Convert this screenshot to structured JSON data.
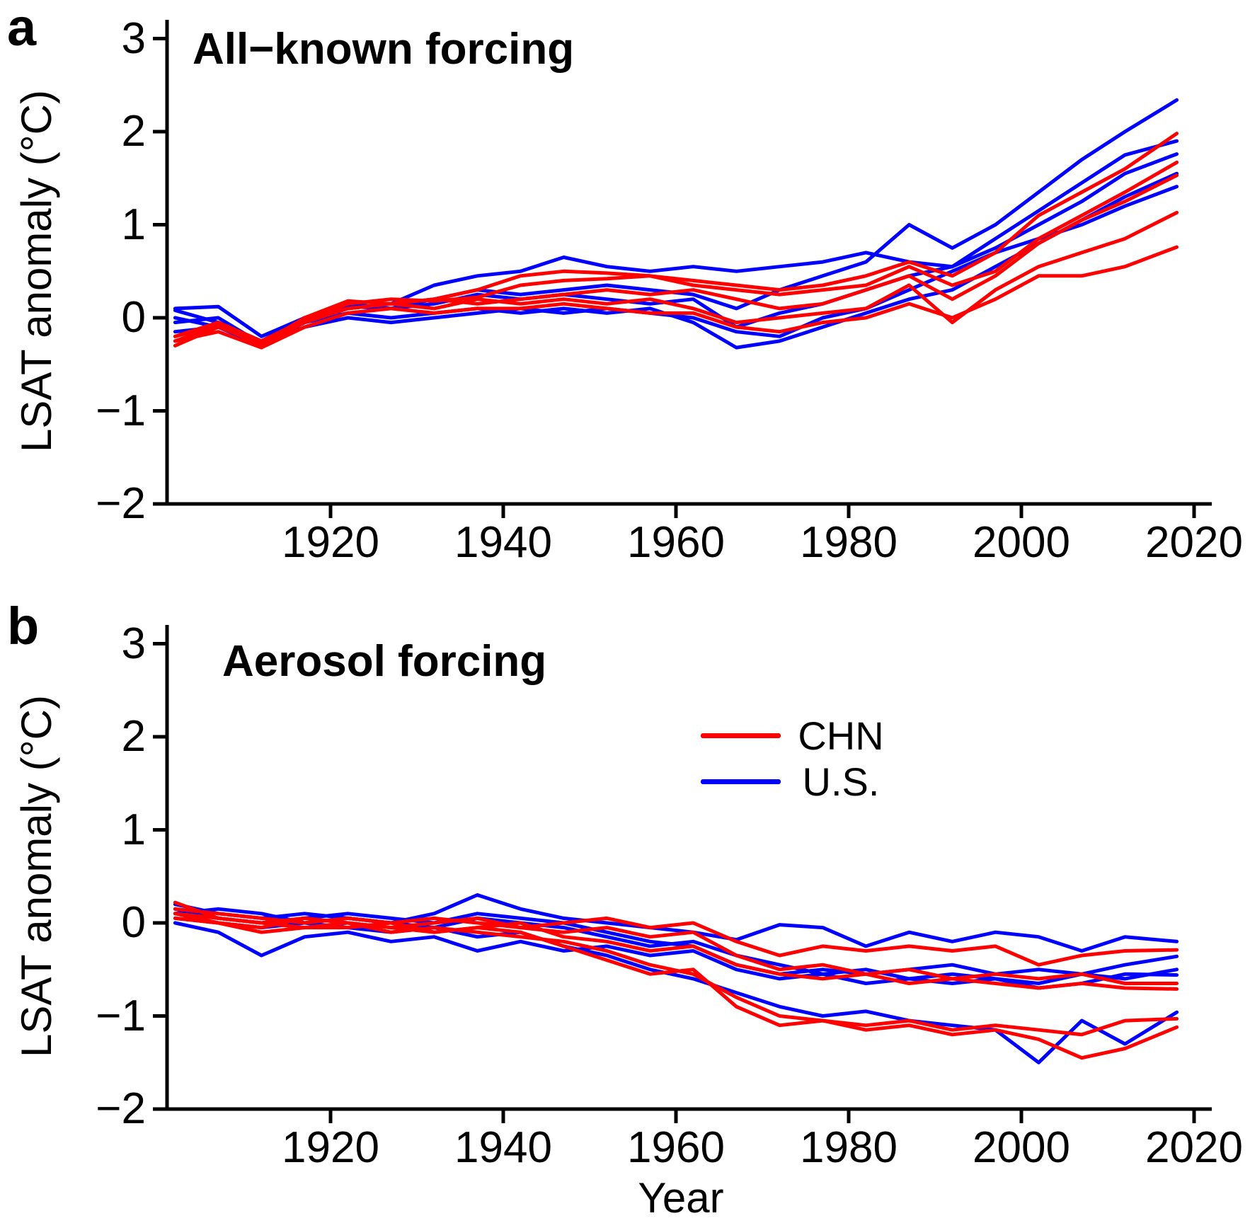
{
  "figure": {
    "panel_a_letter": "a",
    "panel_b_letter": "b"
  },
  "legend": {
    "items": [
      {
        "label": "CHN",
        "color": "#ff0000"
      },
      {
        "label": "U.S.",
        "color": "#0000ff"
      }
    ]
  },
  "chart_data": [
    {
      "type": "line",
      "panel": "a",
      "title": "All−known forcing",
      "ylabel": "LSAT anomaly (°C)",
      "xlabel": "",
      "xlim": [
        1901,
        2022
      ],
      "ylim": [
        -2,
        3
      ],
      "grid": false,
      "x_ticks": [
        1920,
        1940,
        1960,
        1980,
        2000,
        2020
      ],
      "x_tick_labels": [
        "1920",
        "1940",
        "1960",
        "1980",
        "2000",
        "2020"
      ],
      "y_ticks": [
        3,
        2,
        1,
        0,
        -1,
        -2
      ],
      "y_tick_labels": [
        "3",
        "2",
        "1",
        "0",
        "−1",
        "−2"
      ],
      "years": [
        1902,
        1907,
        1912,
        1917,
        1922,
        1927,
        1932,
        1937,
        1942,
        1947,
        1952,
        1957,
        1962,
        1967,
        1972,
        1977,
        1982,
        1987,
        1992,
        1997,
        2002,
        2007,
        2012,
        2018
      ],
      "series": [
        {
          "name": "U.S. member 1",
          "group": "U.S.",
          "color": "#0000ff",
          "values": [
            0.08,
            -0.05,
            -0.25,
            0.0,
            0.15,
            0.1,
            0.2,
            0.3,
            0.25,
            0.3,
            0.35,
            0.3,
            0.25,
            0.1,
            0.3,
            0.45,
            0.6,
            1.0,
            0.75,
            1.0,
            1.35,
            1.7,
            2.0,
            2.34
          ]
        },
        {
          "name": "U.S. member 2",
          "group": "U.S.",
          "color": "#0000ff",
          "values": [
            0.0,
            -0.1,
            -0.3,
            -0.05,
            0.1,
            0.15,
            0.35,
            0.45,
            0.5,
            0.65,
            0.55,
            0.5,
            0.55,
            0.5,
            0.55,
            0.6,
            0.7,
            0.6,
            0.55,
            0.85,
            1.15,
            1.45,
            1.75,
            1.9
          ]
        },
        {
          "name": "U.S. member 3",
          "group": "U.S.",
          "color": "#0000ff",
          "values": [
            0.1,
            0.12,
            -0.2,
            0.0,
            0.12,
            0.1,
            0.15,
            0.25,
            0.2,
            0.25,
            0.2,
            0.15,
            0.2,
            -0.1,
            0.05,
            0.15,
            0.3,
            0.45,
            0.55,
            0.75,
            1.0,
            1.25,
            1.55,
            1.76
          ]
        },
        {
          "name": "U.S. member 4",
          "group": "U.S.",
          "color": "#0000ff",
          "values": [
            -0.05,
            0.0,
            -0.28,
            -0.05,
            0.05,
            0.0,
            0.05,
            0.1,
            0.05,
            0.1,
            0.05,
            0.1,
            -0.05,
            -0.32,
            -0.25,
            -0.1,
            0.05,
            0.2,
            0.3,
            0.55,
            0.8,
            1.05,
            1.3,
            1.55
          ]
        },
        {
          "name": "U.S. member 5",
          "group": "U.S.",
          "color": "#0000ff",
          "values": [
            -0.15,
            -0.1,
            -0.3,
            -0.1,
            0.0,
            -0.05,
            0.0,
            0.05,
            0.1,
            0.05,
            0.1,
            0.05,
            0.0,
            -0.15,
            -0.2,
            0.0,
            0.1,
            0.3,
            0.5,
            0.7,
            0.85,
            1.0,
            1.2,
            1.41
          ]
        },
        {
          "name": "CHN member 1",
          "group": "CHN",
          "color": "#ff0000",
          "values": [
            -0.2,
            -0.05,
            -0.25,
            -0.02,
            0.15,
            0.2,
            0.18,
            0.22,
            0.35,
            0.4,
            0.42,
            0.45,
            0.4,
            0.35,
            0.3,
            0.35,
            0.45,
            0.6,
            0.45,
            0.7,
            1.1,
            1.35,
            1.6,
            1.98
          ]
        },
        {
          "name": "CHN member 2",
          "group": "CHN",
          "color": "#ff0000",
          "values": [
            -0.25,
            -0.08,
            -0.3,
            0.0,
            0.1,
            0.15,
            0.2,
            0.3,
            0.45,
            0.5,
            0.48,
            0.45,
            0.35,
            0.3,
            0.25,
            0.3,
            0.35,
            0.55,
            0.35,
            0.5,
            0.85,
            1.1,
            1.35,
            1.67
          ]
        },
        {
          "name": "CHN member 3",
          "group": "CHN",
          "color": "#ff0000",
          "values": [
            -0.3,
            -0.1,
            -0.28,
            0.0,
            0.18,
            0.15,
            0.2,
            0.15,
            0.2,
            0.25,
            0.3,
            0.25,
            0.3,
            0.2,
            0.1,
            0.15,
            0.3,
            0.45,
            0.2,
            0.45,
            0.8,
            1.05,
            1.25,
            1.53
          ]
        },
        {
          "name": "CHN member 4",
          "group": "CHN",
          "color": "#ff0000",
          "values": [
            -0.2,
            -0.08,
            -0.3,
            -0.05,
            0.1,
            0.15,
            0.1,
            0.2,
            0.15,
            0.2,
            0.15,
            0.2,
            0.1,
            -0.05,
            0.0,
            0.05,
            0.1,
            0.35,
            -0.05,
            0.3,
            0.55,
            0.7,
            0.85,
            1.13
          ]
        },
        {
          "name": "CHN member 5",
          "group": "CHN",
          "color": "#ff0000",
          "values": [
            -0.25,
            -0.15,
            -0.32,
            -0.1,
            0.05,
            0.1,
            0.05,
            0.1,
            0.1,
            0.15,
            0.1,
            0.05,
            0.05,
            -0.1,
            -0.15,
            -0.05,
            0.0,
            0.15,
            0.0,
            0.2,
            0.45,
            0.45,
            0.55,
            0.76
          ]
        }
      ]
    },
    {
      "type": "line",
      "panel": "b",
      "title": "Aerosol forcing",
      "ylabel": "LSAT anomaly (°C)",
      "xlabel": "Year",
      "xlim": [
        1901,
        2022
      ],
      "ylim": [
        -2,
        3
      ],
      "grid": false,
      "legend_position": "upper-right-inside",
      "x_ticks": [
        1920,
        1940,
        1960,
        1980,
        2000,
        2020
      ],
      "x_tick_labels": [
        "1920",
        "1940",
        "1960",
        "1980",
        "2000",
        "2020"
      ],
      "y_ticks": [
        3,
        2,
        1,
        0,
        -1,
        -2
      ],
      "y_tick_labels": [
        "3",
        "2",
        "1",
        "0",
        "−1",
        "−2"
      ],
      "years": [
        1902,
        1907,
        1912,
        1917,
        1922,
        1927,
        1932,
        1937,
        1942,
        1947,
        1952,
        1957,
        1962,
        1967,
        1972,
        1977,
        1982,
        1987,
        1992,
        1997,
        2002,
        2007,
        2012,
        2018
      ],
      "series": [
        {
          "name": "U.S. member 1",
          "group": "U.S.",
          "color": "#0000ff",
          "values": [
            0.2,
            0.1,
            0.05,
            0.1,
            0.05,
            0.0,
            0.1,
            0.3,
            0.15,
            0.05,
            0.0,
            -0.05,
            -0.1,
            -0.18,
            -0.02,
            -0.05,
            -0.25,
            -0.1,
            -0.2,
            -0.1,
            -0.15,
            -0.3,
            -0.15,
            -0.2
          ]
        },
        {
          "name": "U.S. member 2",
          "group": "U.S.",
          "color": "#0000ff",
          "values": [
            0.15,
            0.05,
            0.0,
            0.05,
            0.1,
            0.05,
            0.0,
            0.1,
            0.05,
            0.0,
            -0.1,
            -0.2,
            -0.25,
            -0.45,
            -0.55,
            -0.5,
            -0.55,
            -0.5,
            -0.45,
            -0.55,
            -0.5,
            -0.55,
            -0.45,
            -0.36
          ]
        },
        {
          "name": "U.S. member 3",
          "group": "U.S.",
          "color": "#0000ff",
          "values": [
            0.1,
            0.15,
            0.1,
            0.0,
            0.05,
            0.0,
            -0.05,
            0.05,
            0.0,
            -0.05,
            -0.15,
            -0.25,
            -0.2,
            -0.35,
            -0.45,
            -0.55,
            -0.5,
            -0.6,
            -0.55,
            -0.6,
            -0.65,
            -0.55,
            -0.6,
            -0.5
          ]
        },
        {
          "name": "U.S. member 4",
          "group": "U.S.",
          "color": "#0000ff",
          "values": [
            0.0,
            -0.1,
            -0.35,
            -0.15,
            -0.1,
            -0.2,
            -0.15,
            -0.3,
            -0.2,
            -0.3,
            -0.25,
            -0.35,
            -0.3,
            -0.5,
            -0.6,
            -0.55,
            -0.65,
            -0.6,
            -0.65,
            -0.6,
            -0.7,
            -0.65,
            -0.55,
            -0.56
          ]
        },
        {
          "name": "U.S. member 5",
          "group": "U.S.",
          "color": "#0000ff",
          "values": [
            0.05,
            0.0,
            -0.05,
            0.0,
            -0.05,
            -0.1,
            -0.05,
            -0.15,
            -0.1,
            -0.25,
            -0.35,
            -0.5,
            -0.6,
            -0.75,
            -0.9,
            -1.0,
            -0.95,
            -1.05,
            -1.1,
            -1.15,
            -1.5,
            -1.05,
            -1.3,
            -0.96
          ]
        },
        {
          "name": "CHN member 1",
          "group": "CHN",
          "color": "#ff0000",
          "values": [
            0.22,
            0.05,
            0.0,
            0.05,
            0.0,
            -0.05,
            0.0,
            0.05,
            -0.05,
            0.0,
            0.05,
            -0.05,
            0.0,
            -0.2,
            -0.35,
            -0.25,
            -0.3,
            -0.25,
            -0.3,
            -0.25,
            -0.45,
            -0.35,
            -0.3,
            -0.29
          ]
        },
        {
          "name": "CHN member 2",
          "group": "CHN",
          "color": "#ff0000",
          "values": [
            0.15,
            0.1,
            0.05,
            0.0,
            0.05,
            0.0,
            0.05,
            0.0,
            -0.05,
            -0.1,
            -0.05,
            -0.15,
            -0.1,
            -0.35,
            -0.5,
            -0.45,
            -0.55,
            -0.5,
            -0.6,
            -0.55,
            -0.6,
            -0.55,
            -0.65,
            -0.65
          ]
        },
        {
          "name": "CHN member 3",
          "group": "CHN",
          "color": "#ff0000",
          "values": [
            0.1,
            0.0,
            -0.05,
            0.05,
            0.0,
            -0.05,
            -0.1,
            -0.05,
            0.0,
            -0.15,
            -0.2,
            -0.3,
            -0.25,
            -0.45,
            -0.55,
            -0.6,
            -0.55,
            -0.65,
            -0.6,
            -0.65,
            -0.7,
            -0.65,
            -0.7,
            -0.71
          ]
        },
        {
          "name": "CHN member 4",
          "group": "CHN",
          "color": "#ff0000",
          "values": [
            0.05,
            0.0,
            -0.1,
            -0.05,
            0.0,
            -0.1,
            -0.05,
            -0.1,
            -0.15,
            -0.2,
            -0.3,
            -0.45,
            -0.55,
            -0.8,
            -1.0,
            -1.05,
            -1.1,
            -1.05,
            -1.15,
            -1.1,
            -1.15,
            -1.2,
            -1.05,
            -1.03
          ]
        },
        {
          "name": "CHN member 5",
          "group": "CHN",
          "color": "#ff0000",
          "values": [
            0.1,
            0.05,
            0.0,
            -0.05,
            -0.05,
            0.0,
            -0.1,
            -0.05,
            -0.1,
            -0.25,
            -0.4,
            -0.55,
            -0.5,
            -0.9,
            -1.1,
            -1.05,
            -1.15,
            -1.1,
            -1.2,
            -1.15,
            -1.25,
            -1.45,
            -1.35,
            -1.12
          ]
        }
      ]
    }
  ]
}
